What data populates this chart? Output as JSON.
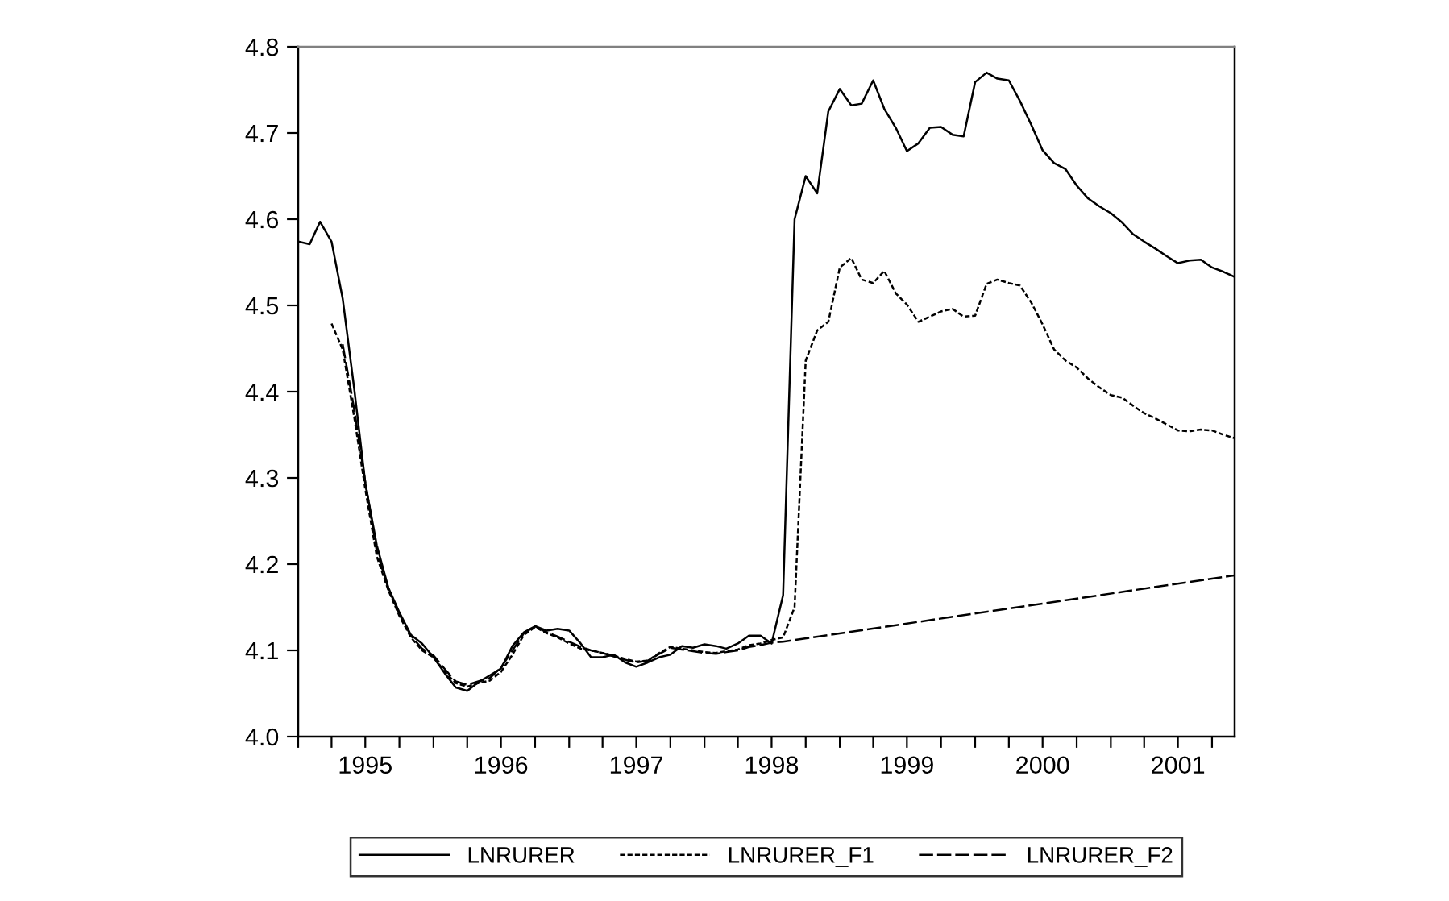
{
  "chart_data": {
    "type": "line",
    "x": [
      "1995-01",
      "1995-02",
      "1995-03",
      "1995-04",
      "1995-05",
      "1995-06",
      "1995-07",
      "1995-08",
      "1995-09",
      "1995-10",
      "1995-11",
      "1995-12",
      "1996-01",
      "1996-02",
      "1996-03",
      "1996-04",
      "1996-05",
      "1996-06",
      "1996-07",
      "1996-08",
      "1996-09",
      "1996-10",
      "1996-11",
      "1996-12",
      "1997-01",
      "1997-02",
      "1997-03",
      "1997-04",
      "1997-05",
      "1997-06",
      "1997-07",
      "1997-08",
      "1997-09",
      "1997-10",
      "1997-11",
      "1997-12",
      "1998-01",
      "1998-02",
      "1998-03",
      "1998-04",
      "1998-05",
      "1998-06",
      "1998-07",
      "1998-08",
      "1998-09",
      "1998-10",
      "1998-11",
      "1998-12",
      "1999-01",
      "1999-02",
      "1999-03",
      "1999-04",
      "1999-05",
      "1999-06",
      "1999-07",
      "1999-08",
      "1999-09",
      "1999-10",
      "1999-11",
      "1999-12",
      "2000-01",
      "2000-02",
      "2000-03",
      "2000-04",
      "2000-05",
      "2000-06",
      "2000-07",
      "2000-08",
      "2000-09",
      "2000-10",
      "2000-11",
      "2000-12",
      "2001-01",
      "2001-02",
      "2001-03",
      "2001-04",
      "2001-05",
      "2001-06",
      "2001-07",
      "2001-08",
      "2001-09",
      "2001-10",
      "2001-11",
      "2001-12"
    ],
    "series": [
      {
        "name": "LNRURER",
        "color": "#000000",
        "line_style": "solid",
        "values": [
          4.574,
          4.571,
          4.597,
          4.574,
          4.508,
          4.404,
          4.294,
          4.222,
          4.173,
          4.144,
          4.118,
          4.108,
          4.092,
          4.073,
          4.057,
          4.053,
          4.063,
          4.071,
          4.079,
          4.105,
          4.121,
          4.128,
          4.123,
          4.125,
          4.123,
          4.108,
          4.092,
          4.092,
          4.095,
          4.086,
          4.081,
          4.086,
          4.092,
          4.095,
          4.105,
          4.103,
          4.107,
          4.105,
          4.102,
          4.108,
          4.117,
          4.117,
          4.108,
          4.164,
          4.6,
          4.65,
          4.63,
          4.725,
          4.751,
          4.732,
          4.734,
          4.761,
          4.728,
          4.706,
          4.679,
          4.688,
          4.706,
          4.707,
          4.698,
          4.696,
          4.759,
          4.77,
          4.763,
          4.761,
          4.737,
          4.709,
          4.68,
          4.665,
          4.658,
          4.639,
          4.624,
          4.615,
          4.607,
          4.596,
          4.583,
          4.574,
          4.566,
          4.557,
          4.549,
          4.552,
          4.553,
          4.544,
          4.539,
          4.533
        ]
      },
      {
        "name": "LNRURER_F1",
        "color": "#000000",
        "line_style": "dotted",
        "values": [
          null,
          null,
          null,
          4.479,
          4.449,
          4.371,
          4.287,
          4.209,
          4.17,
          4.14,
          4.115,
          4.1,
          4.092,
          4.075,
          4.062,
          4.058,
          4.062,
          4.065,
          4.075,
          4.095,
          4.118,
          4.127,
          4.12,
          4.115,
          4.108,
          4.102,
          4.1,
          4.097,
          4.094,
          4.09,
          4.087,
          4.088,
          4.097,
          4.104,
          4.102,
          4.1,
          4.098,
          4.097,
          4.099,
          4.101,
          4.106,
          4.108,
          4.112,
          4.115,
          4.15,
          4.436,
          4.471,
          4.481,
          4.544,
          4.555,
          4.53,
          4.526,
          4.54,
          4.514,
          4.501,
          4.481,
          4.487,
          4.493,
          4.496,
          4.487,
          4.488,
          4.525,
          4.53,
          4.526,
          4.523,
          4.503,
          4.478,
          4.449,
          4.436,
          4.428,
          4.415,
          4.405,
          4.396,
          4.393,
          4.384,
          4.375,
          4.369,
          4.362,
          4.355,
          4.354,
          4.356,
          4.355,
          4.35,
          4.346
        ]
      },
      {
        "name": "LNRURER_F2",
        "color": "#000000",
        "line_style": "dashed",
        "x": [
          "1995-05",
          "1995-06",
          "1995-07",
          "1995-08",
          "1995-09",
          "1995-10",
          "1995-11",
          "1995-12",
          "1996-01",
          "1996-02",
          "1996-03",
          "1996-04",
          "1996-05",
          "1996-06",
          "1996-07",
          "1996-08",
          "1996-09",
          "1996-10",
          "1996-11",
          "1996-12",
          "1997-01",
          "1997-02",
          "1997-03",
          "1997-04",
          "1997-05",
          "1997-06",
          "1997-07",
          "1997-08",
          "1997-09",
          "1997-10",
          "1997-11",
          "1997-12",
          "1998-01",
          "1998-02",
          "1998-03",
          "1998-04",
          "1998-05",
          "1998-06",
          "1998-07",
          "1998-08",
          "2001-12"
        ],
        "values": [
          4.455,
          4.38,
          4.295,
          4.215,
          4.172,
          4.142,
          4.117,
          4.102,
          4.094,
          4.078,
          4.064,
          4.06,
          4.064,
          4.068,
          4.08,
          4.1,
          4.12,
          4.128,
          4.121,
          4.116,
          4.11,
          4.104,
          4.1,
          4.097,
          4.093,
          4.089,
          4.086,
          4.088,
          4.096,
          4.103,
          4.101,
          4.099,
          4.097,
          4.096,
          4.098,
          4.1,
          4.104,
          4.106,
          4.109,
          4.11,
          4.187
        ]
      }
    ],
    "xlim": [
      "1995-01",
      "2001-12"
    ],
    "xticks": [
      {
        "value": "1995-01",
        "label": null
      },
      {
        "value": "1995-04",
        "label": null
      },
      {
        "value": "1995-07",
        "label": "1995"
      },
      {
        "value": "1995-10",
        "label": null
      },
      {
        "value": "1996-01",
        "label": null
      },
      {
        "value": "1996-04",
        "label": null
      },
      {
        "value": "1996-07",
        "label": "1996"
      },
      {
        "value": "1996-10",
        "label": null
      },
      {
        "value": "1997-01",
        "label": null
      },
      {
        "value": "1997-04",
        "label": null
      },
      {
        "value": "1997-07",
        "label": "1997"
      },
      {
        "value": "1997-10",
        "label": null
      },
      {
        "value": "1998-01",
        "label": null
      },
      {
        "value": "1998-04",
        "label": null
      },
      {
        "value": "1998-07",
        "label": "1998"
      },
      {
        "value": "1998-10",
        "label": null
      },
      {
        "value": "1999-01",
        "label": null
      },
      {
        "value": "1999-04",
        "label": null
      },
      {
        "value": "1999-07",
        "label": "1999"
      },
      {
        "value": "1999-10",
        "label": null
      },
      {
        "value": "2000-01",
        "label": null
      },
      {
        "value": "2000-04",
        "label": null
      },
      {
        "value": "2000-07",
        "label": "2000"
      },
      {
        "value": "2000-10",
        "label": null
      },
      {
        "value": "2001-01",
        "label": null
      },
      {
        "value": "2001-04",
        "label": null
      },
      {
        "value": "2001-07",
        "label": "2001"
      },
      {
        "value": "2001-10",
        "label": null
      }
    ],
    "ylim": [
      4.0,
      4.8
    ],
    "yticks": [
      {
        "value": 4.0,
        "label": "4.0"
      },
      {
        "value": 4.1,
        "label": "4.1"
      },
      {
        "value": 4.2,
        "label": "4.2"
      },
      {
        "value": 4.3,
        "label": "4.3"
      },
      {
        "value": 4.4,
        "label": "4.4"
      },
      {
        "value": 4.5,
        "label": "4.5"
      },
      {
        "value": 4.6,
        "label": "4.6"
      },
      {
        "value": 4.7,
        "label": "4.7"
      },
      {
        "value": 4.8,
        "label": "4.8"
      }
    ],
    "grid": false,
    "legend": "bottom",
    "marker": "none"
  }
}
